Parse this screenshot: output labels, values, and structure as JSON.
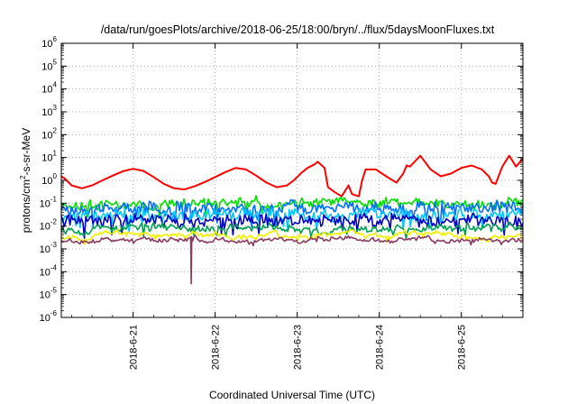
{
  "chart_data": {
    "type": "line",
    "title": "/data/run/goesPlots/archive/2018-06-25/18:00/bryn/../flux/5daysMoonFluxes.txt",
    "xlabel": "Coordinated Universal Time (UTC)",
    "ylabel": "protons/cm²-s-sr-MeV",
    "ylabel_parts": {
      "pre": "protons/cm",
      "sup": "2",
      "post": "-s-sr-MeV"
    },
    "yscale": "log",
    "ylim": [
      1e-06,
      1000000.0
    ],
    "y_tick_labels": [
      {
        "base": "10",
        "exp": "-6"
      },
      {
        "base": "10",
        "exp": "-5"
      },
      {
        "base": "10",
        "exp": "-4"
      },
      {
        "base": "10",
        "exp": "-3"
      },
      {
        "base": "10",
        "exp": "-2"
      },
      {
        "base": "10",
        "exp": "-1"
      },
      {
        "base": "10",
        "exp": "0"
      },
      {
        "base": "10",
        "exp": "1"
      },
      {
        "base": "10",
        "exp": "2"
      },
      {
        "base": "10",
        "exp": "3"
      },
      {
        "base": "10",
        "exp": "4"
      },
      {
        "base": "10",
        "exp": "5"
      },
      {
        "base": "10",
        "exp": "6"
      }
    ],
    "x_ticks": [
      "2018-6-21",
      "2018-6-22",
      "2018-6-23",
      "2018-6-24",
      "2018-6-25"
    ],
    "xlim": [
      "2018-06-20T03:00",
      "2018-06-25T18:00"
    ],
    "grid": true,
    "legend": "none",
    "series": [
      {
        "color": "#ff0000",
        "x": [
          "2018-06-20T03:00",
          "2018-06-20T04:00",
          "2018-06-20T06:00",
          "2018-06-20T09:00",
          "2018-06-20T12:00",
          "2018-06-20T15:00",
          "2018-06-20T18:00",
          "2018-06-20T21:00",
          "2018-06-21T00:00",
          "2018-06-21T03:00",
          "2018-06-21T06:00",
          "2018-06-21T09:00",
          "2018-06-21T12:00",
          "2018-06-21T15:00",
          "2018-06-21T18:00",
          "2018-06-21T21:00",
          "2018-06-22T00:00",
          "2018-06-22T03:00",
          "2018-06-22T06:00",
          "2018-06-22T09:00",
          "2018-06-22T12:00",
          "2018-06-22T15:00",
          "2018-06-22T18:00",
          "2018-06-22T21:00",
          "2018-06-22T23:00",
          "2018-06-23T01:00",
          "2018-06-23T03:00",
          "2018-06-23T05:00",
          "2018-06-23T06:00",
          "2018-06-23T08:00",
          "2018-06-23T09:00",
          "2018-06-23T11:00",
          "2018-06-23T13:00",
          "2018-06-23T15:00",
          "2018-06-23T16:00",
          "2018-06-23T18:00",
          "2018-06-23T19:00",
          "2018-06-23T20:00",
          "2018-06-23T23:00",
          "2018-06-24T02:00",
          "2018-06-24T05:00",
          "2018-06-24T07:00",
          "2018-06-24T08:00",
          "2018-06-24T09:00",
          "2018-06-24T12:00",
          "2018-06-24T15:00",
          "2018-06-24T18:00",
          "2018-06-24T21:00",
          "2018-06-25T00:00",
          "2018-06-25T03:00",
          "2018-06-25T06:00",
          "2018-06-25T08:00",
          "2018-06-25T09:00",
          "2018-06-25T10:00",
          "2018-06-25T12:00",
          "2018-06-25T14:00",
          "2018-06-25T16:00",
          "2018-06-25T18:00"
        ],
        "y": [
          1.5,
          1.2,
          0.6,
          0.45,
          0.6,
          1.0,
          1.6,
          2.5,
          3.2,
          2.6,
          1.4,
          0.7,
          0.45,
          0.4,
          0.55,
          0.85,
          1.4,
          2.3,
          3.5,
          3.0,
          1.6,
          0.8,
          0.5,
          0.6,
          1.0,
          2.0,
          3.5,
          5.0,
          6.5,
          3.5,
          0.5,
          0.3,
          0.2,
          0.6,
          0.25,
          0.2,
          1.0,
          3.0,
          3.0,
          1.5,
          0.8,
          2.0,
          4.5,
          4.0,
          12,
          3.0,
          1.5,
          2.0,
          3.5,
          4.5,
          3.0,
          1.5,
          0.8,
          0.7,
          4.0,
          12,
          4.0,
          9.0
        ]
      },
      {
        "color": "#00e000",
        "base": 0.1,
        "spread": 0.35,
        "seed": 11,
        "x_start": "2018-06-20T03:00",
        "x_end": "2018-06-25T18:00"
      },
      {
        "color": "#0070ff",
        "base": 0.06,
        "spread": 0.45,
        "seed": 23,
        "x_start": "2018-06-20T03:00",
        "x_end": "2018-06-25T18:00"
      },
      {
        "color": "#00c8ff",
        "base": 0.03,
        "spread": 0.45,
        "seed": 37,
        "x_start": "2018-06-20T03:00",
        "x_end": "2018-06-25T18:00"
      },
      {
        "color": "#0000c0",
        "base": 0.018,
        "spread": 0.45,
        "seed": 41,
        "x_start": "2018-06-20T03:00",
        "x_end": "2018-06-25T18:00"
      },
      {
        "color": "#00a050",
        "base": 0.008,
        "spread": 0.25,
        "seed": 53,
        "x_start": "2018-06-20T03:00",
        "x_end": "2018-06-25T18:00"
      },
      {
        "color": "#f0f000",
        "base": 0.004,
        "spread": 0.12,
        "seed": 67,
        "x_start": "2018-06-20T03:00",
        "x_end": "2018-06-25T18:00"
      },
      {
        "color": "#8b3a62",
        "base": 0.0025,
        "spread": 0.1,
        "seed": 79,
        "x_start": "2018-06-20T03:00",
        "x_end": "2018-06-25T18:00",
        "dips": [
          {
            "x": "2018-06-21T17:00",
            "y": 3e-05
          }
        ]
      }
    ]
  }
}
